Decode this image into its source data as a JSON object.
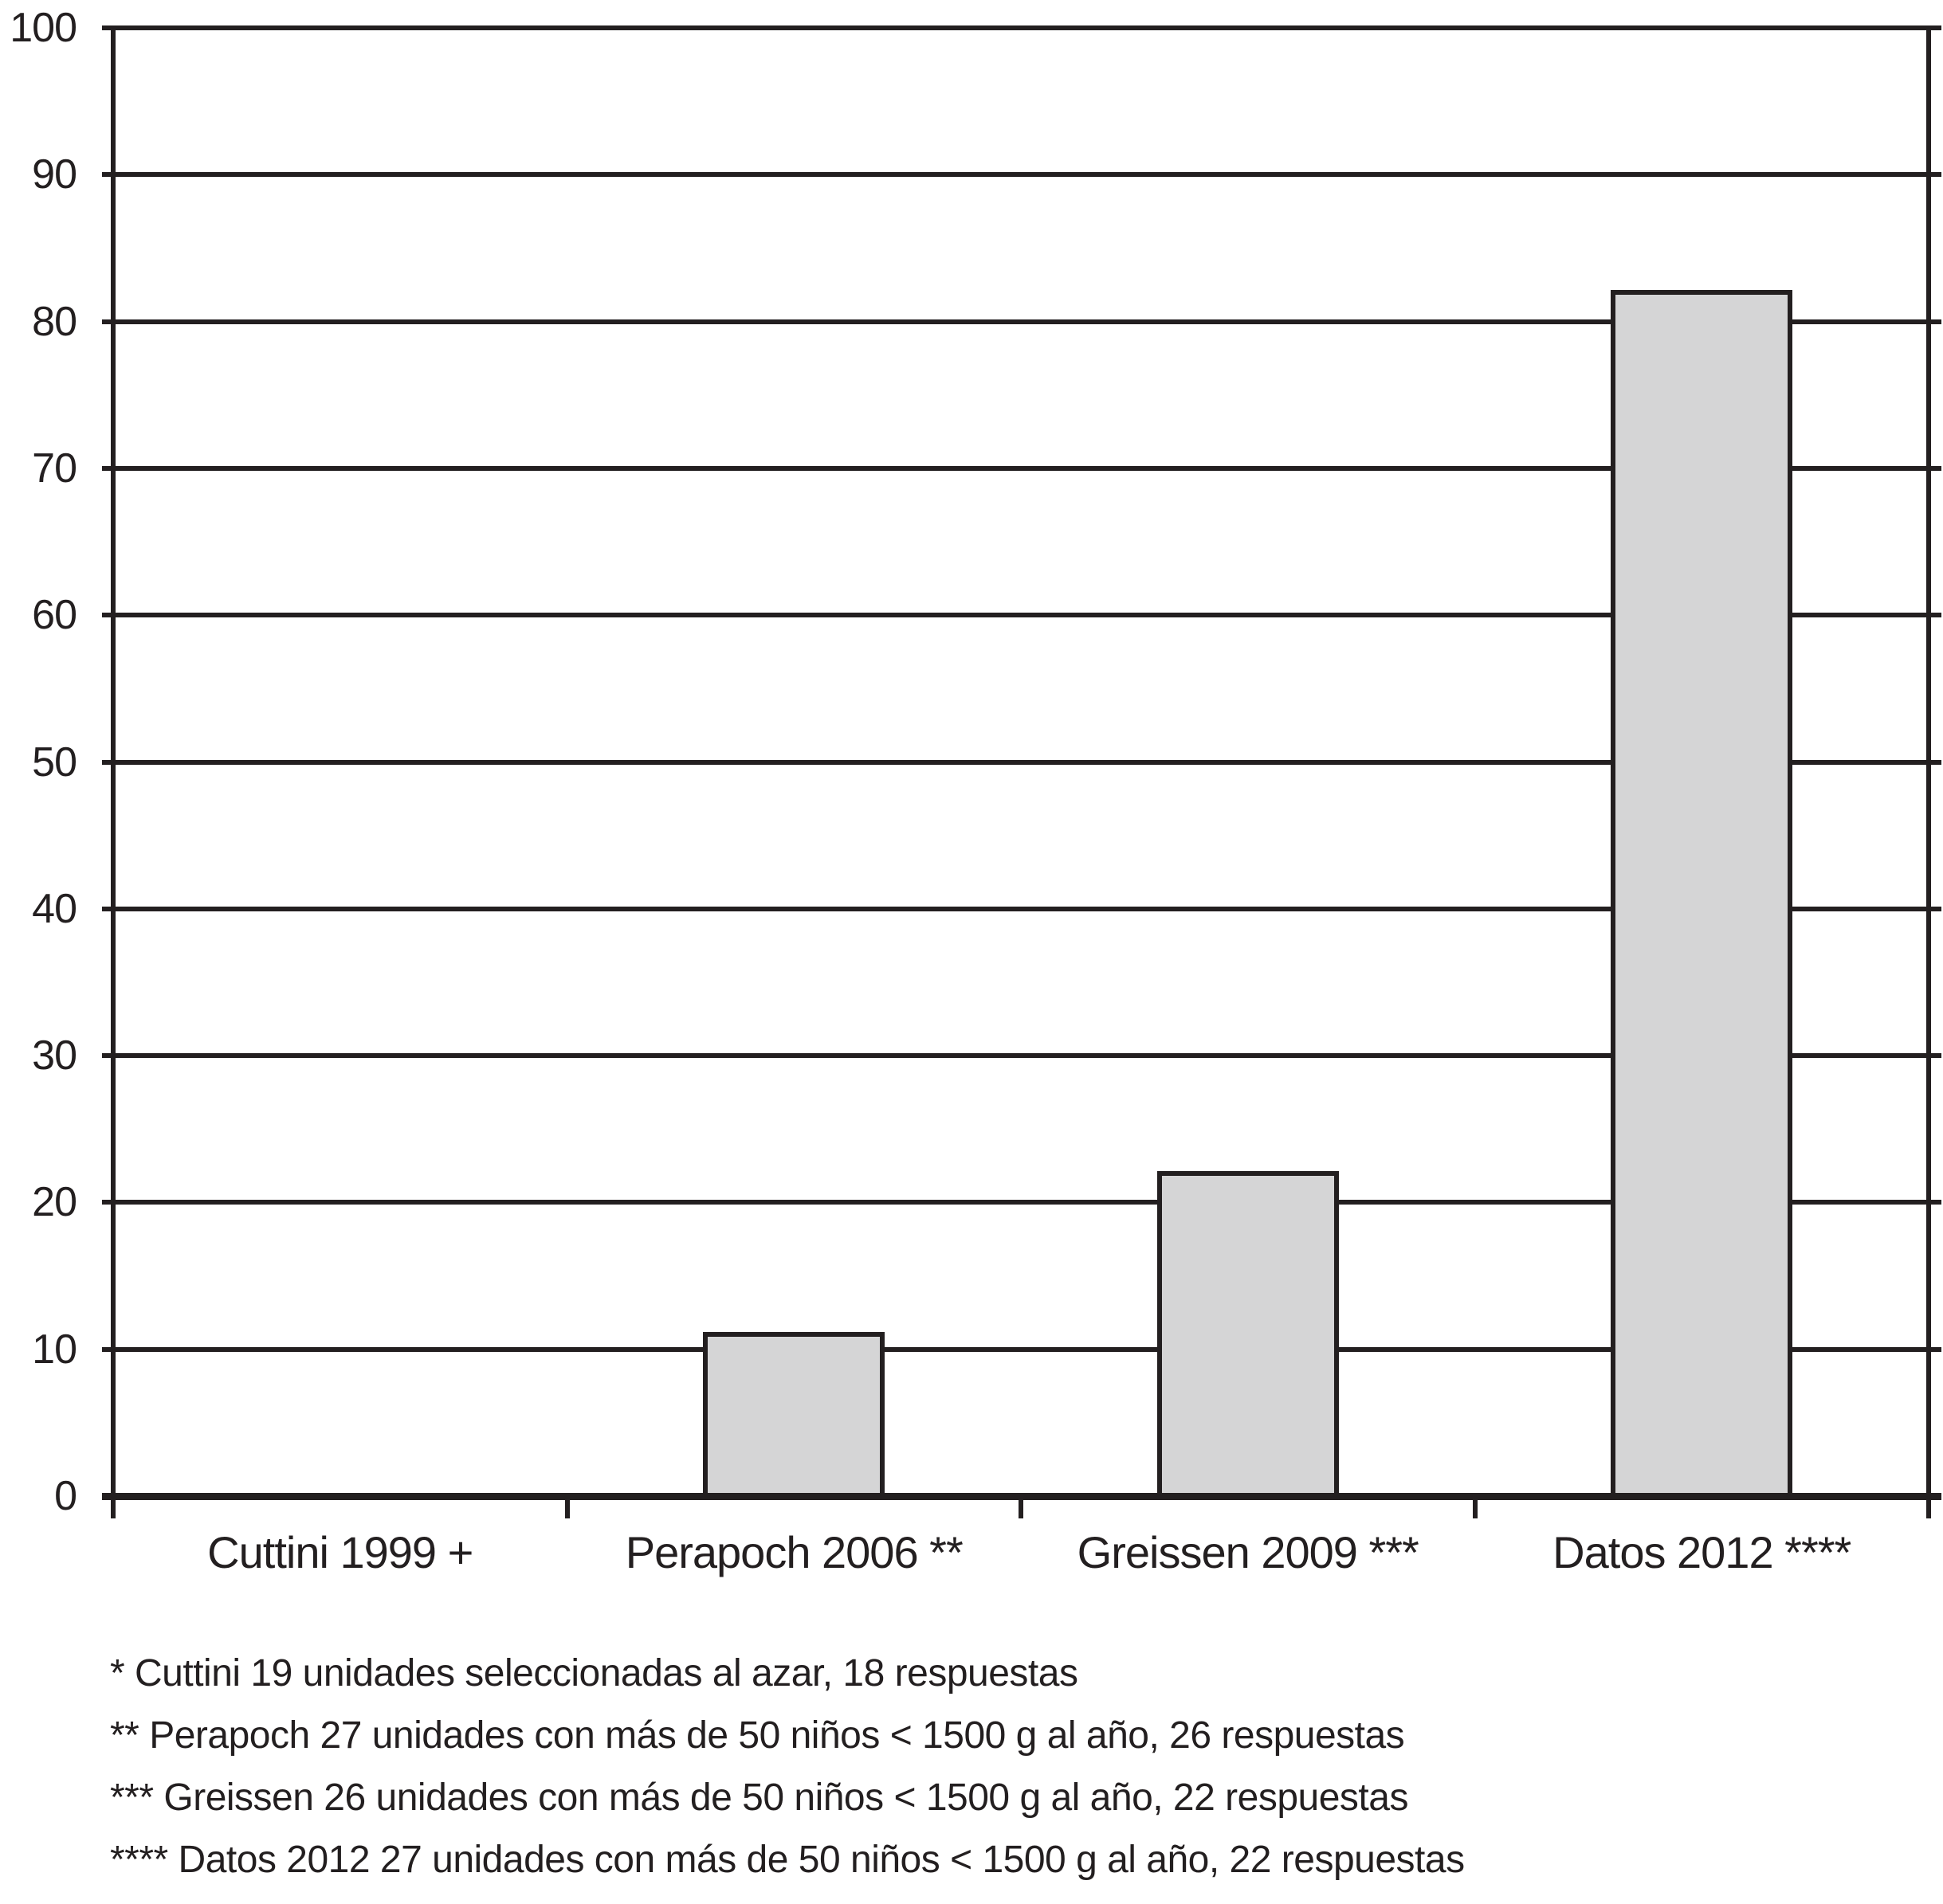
{
  "chart_data": {
    "type": "bar",
    "title": "",
    "xlabel": "",
    "ylabel": "",
    "categories": [
      "Cuttini 1999 +",
      "Perapoch 2006 **",
      "Greissen 2009 ***",
      "Datos 2012 ****"
    ],
    "values": [
      0,
      11,
      22,
      82
    ],
    "ylim": [
      0,
      100
    ],
    "ytick_step": 10,
    "ytick_labels": [
      "0",
      "10",
      "20",
      "30",
      "40",
      "50",
      "60",
      "70",
      "80",
      "90",
      "100"
    ],
    "grid": "horizontal",
    "legend_position": "none",
    "bar_fill_color": "#d5d5d6",
    "line_color": "#231f20"
  },
  "footnotes": {
    "lines": [
      "* Cuttini 19 unidades seleccionadas al azar, 18 respuestas",
      "** Perapoch 27 unidades con más de 50 niños < 1500 g al año, 26 respuestas",
      "*** Greissen 26 unidades con más de 50 niños < 1500 g al año, 22 respuestas",
      "**** Datos 2012 27 unidades con más de 50 niños < 1500 g al año, 22 respuestas"
    ]
  }
}
